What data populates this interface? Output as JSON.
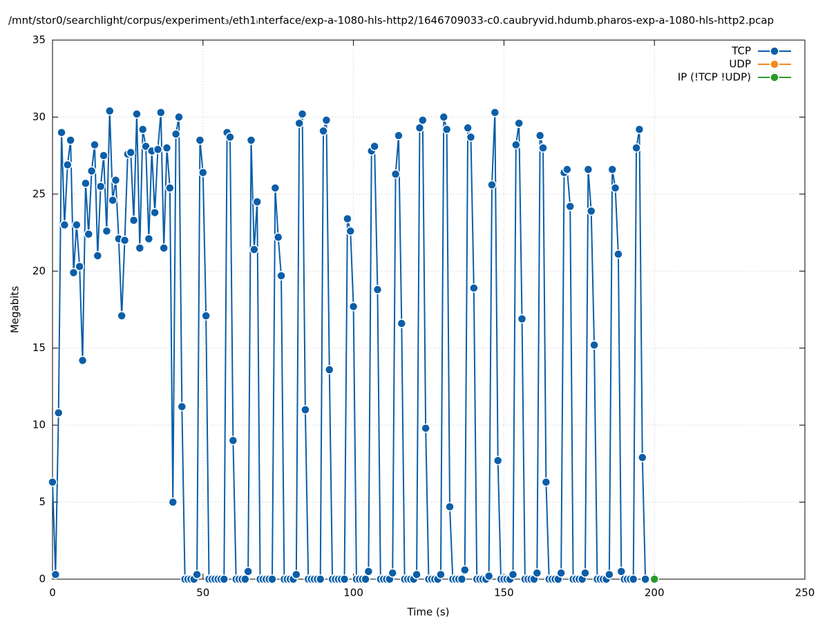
{
  "chart_data": {
    "type": "line",
    "title": "/mnt/stor0/searchlight/corpus/experiment₃/eth1ᵢnterface/exp-a-1080-hls-http2/1646709033-c0.caubryvid.hdumb.pharos-exp-a-1080-hls-http2.pcap",
    "x_label": "Time (s)",
    "y_label": "Megabits",
    "xlim": [
      0,
      250
    ],
    "xticks": [
      0,
      50,
      100,
      150,
      200,
      250
    ],
    "ylim": [
      0,
      35
    ],
    "yticks": [
      0,
      5,
      10,
      15,
      20,
      25,
      30,
      35
    ],
    "grid": true,
    "legend": "top-right",
    "series": [
      {
        "name": "TCP",
        "color": "#0b5ea8",
        "x": [
          0,
          1,
          2,
          3,
          4,
          5,
          6,
          7,
          8,
          9,
          10,
          11,
          12,
          13,
          14,
          15,
          16,
          17,
          18,
          19,
          20,
          21,
          22,
          23,
          24,
          25,
          26,
          27,
          28,
          29,
          30,
          31,
          32,
          33,
          34,
          35,
          36,
          37,
          38,
          39,
          40,
          41,
          42,
          43,
          44,
          45,
          46,
          47,
          48,
          49,
          50,
          51,
          52,
          53,
          54,
          55,
          56,
          57,
          58,
          59,
          60,
          61,
          62,
          63,
          64,
          65,
          66,
          67,
          68,
          69,
          70,
          71,
          72,
          73,
          74,
          75,
          76,
          77,
          78,
          79,
          80,
          81,
          82,
          83,
          84,
          85,
          86,
          87,
          88,
          89,
          90,
          91,
          92,
          93,
          94,
          95,
          96,
          97,
          98,
          99,
          100,
          101,
          102,
          103,
          104,
          105,
          106,
          107,
          108,
          109,
          110,
          111,
          112,
          113,
          114,
          115,
          116,
          117,
          118,
          119,
          120,
          121,
          122,
          123,
          124,
          125,
          126,
          127,
          128,
          129,
          130,
          131,
          132,
          133,
          134,
          135,
          136,
          137,
          138,
          139,
          140,
          141,
          142,
          143,
          144,
          145,
          146,
          147,
          148,
          149,
          150,
          151,
          152,
          153,
          154,
          155,
          156,
          157,
          158,
          159,
          160,
          161,
          162,
          163,
          164,
          165,
          166,
          167,
          168,
          169,
          170,
          171,
          172,
          173,
          174,
          175,
          176,
          177,
          178,
          179,
          180,
          181,
          182,
          183,
          184,
          185,
          186,
          187,
          188,
          189,
          190,
          191,
          192,
          193,
          194,
          195,
          196,
          197
        ],
        "values": [
          6.3,
          0.3,
          10.8,
          29.0,
          23.0,
          26.9,
          28.5,
          19.9,
          23.0,
          20.3,
          14.2,
          25.7,
          22.4,
          26.5,
          28.2,
          21.0,
          25.5,
          27.5,
          22.6,
          30.4,
          24.6,
          25.9,
          22.1,
          17.1,
          22.0,
          27.6,
          27.7,
          23.3,
          30.2,
          21.5,
          29.2,
          28.1,
          22.1,
          27.8,
          23.8,
          27.9,
          30.3,
          21.5,
          28.0,
          25.4,
          5.0,
          28.9,
          30.0,
          11.2,
          0,
          0,
          0,
          0,
          0.3,
          28.5,
          26.4,
          17.1,
          0,
          0,
          0,
          0,
          0,
          0,
          29.0,
          28.7,
          9.0,
          0,
          0,
          0,
          0,
          0.5,
          28.5,
          21.4,
          24.5,
          0,
          0,
          0,
          0,
          0,
          25.4,
          22.2,
          19.7,
          0,
          0,
          0,
          0,
          0.3,
          29.6,
          30.2,
          11.0,
          0,
          0,
          0,
          0,
          0,
          29.1,
          29.8,
          13.6,
          0,
          0,
          0,
          0,
          0,
          23.4,
          22.6,
          17.7,
          0,
          0,
          0,
          0,
          0.5,
          27.8,
          28.1,
          18.8,
          0,
          0,
          0,
          0,
          0.4,
          26.3,
          28.8,
          16.6,
          0,
          0,
          0,
          0,
          0.3,
          29.3,
          29.8,
          9.8,
          0,
          0,
          0,
          0,
          0.3,
          30.0,
          29.2,
          4.7,
          0,
          0,
          0,
          0,
          0.6,
          29.3,
          28.7,
          18.9,
          0,
          0,
          0,
          0,
          0.2,
          25.6,
          30.3,
          7.7,
          0,
          0,
          0,
          0,
          0.3,
          28.2,
          29.6,
          16.9,
          0,
          0,
          0,
          0,
          0.4,
          28.8,
          28.0,
          6.3,
          0,
          0,
          0,
          0,
          0.4,
          26.4,
          26.6,
          24.2,
          0,
          0,
          0,
          0,
          0.4,
          26.6,
          23.9,
          15.2,
          0,
          0,
          0,
          0,
          0.3,
          26.6,
          25.4,
          21.1,
          0.5,
          0,
          0,
          0,
          0,
          28.0,
          29.2,
          7.9,
          0
        ]
      },
      {
        "name": "UDP",
        "color": "#f28a1e",
        "x": [],
        "values": []
      },
      {
        "name": "IP (!TCP  !UDP)",
        "color": "#2a9a2a",
        "x": [
          200
        ],
        "values": [
          0
        ]
      }
    ]
  }
}
